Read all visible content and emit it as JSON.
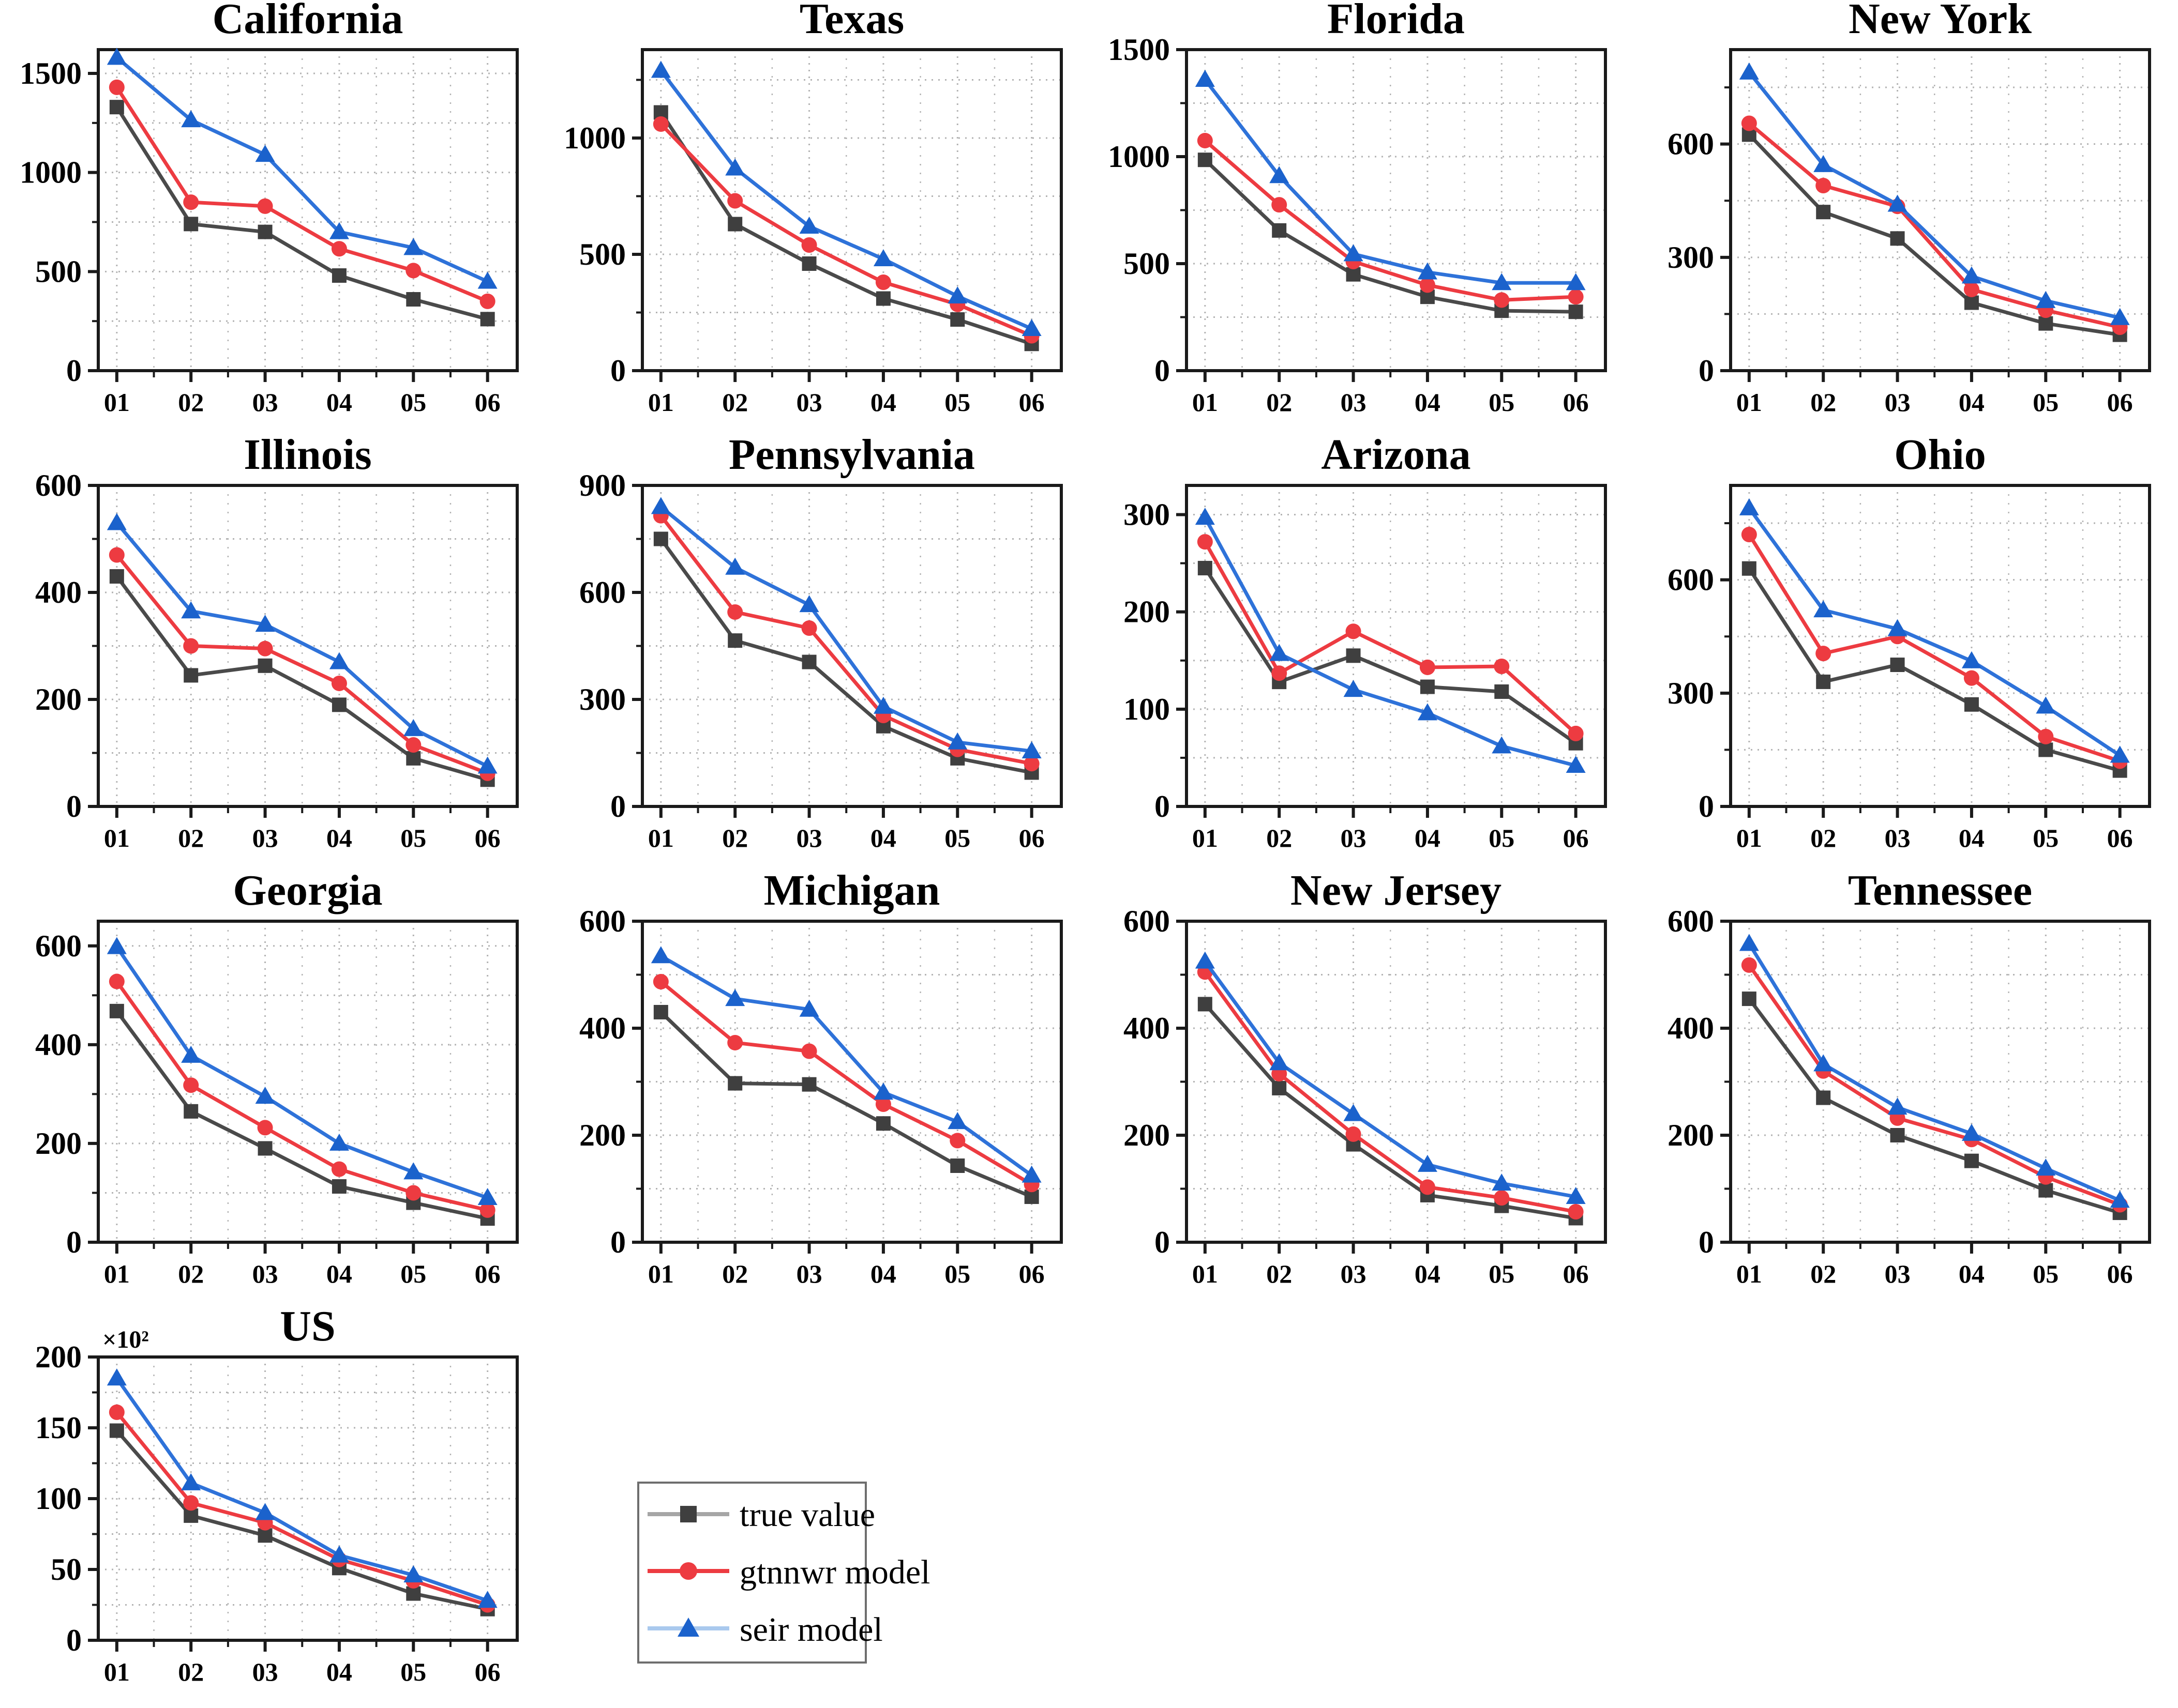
{
  "figure": {
    "background": "#ffffff",
    "text_color": "#000000",
    "grid_color": "#b3b3b3",
    "frame_color": "#1a1a1a"
  },
  "legend": {
    "items": [
      {
        "label": "true value",
        "marker": "square",
        "marker_color": "#3f3f3f",
        "line_color": "#a6a6a6"
      },
      {
        "label": "gtnnwr model",
        "marker": "circle",
        "marker_color": "#ed3b41",
        "line_color": "#ed3b41"
      },
      {
        "label": "seir model",
        "marker": "triangle",
        "marker_color": "#1b62cc",
        "line_color": "#a9c9ee"
      }
    ]
  },
  "series_style": [
    {
      "name": "true value",
      "marker": "square",
      "marker_color": "#3f3f3f",
      "line_color": "#4a4a4a"
    },
    {
      "name": "gtnnwr model",
      "marker": "circle",
      "marker_color": "#ed3b41",
      "line_color": "#ed3b41"
    },
    {
      "name": "seir model",
      "marker": "triangle",
      "marker_color": "#1b62cc",
      "line_color": "#2e72d9"
    }
  ],
  "chart_data": [
    {
      "type": "line",
      "title": "California",
      "x": [
        "01",
        "02",
        "03",
        "04",
        "05",
        "06"
      ],
      "ylim": [
        0,
        1620
      ],
      "yticks": [
        0,
        500,
        1000,
        1500
      ],
      "minor_step": 250,
      "series": [
        {
          "name": "true value",
          "values": [
            1330,
            740,
            700,
            480,
            360,
            260
          ]
        },
        {
          "name": "gtnnwr model",
          "values": [
            1430,
            850,
            830,
            615,
            505,
            350
          ]
        },
        {
          "name": "seir model",
          "values": [
            1580,
            1265,
            1090,
            700,
            620,
            450
          ]
        }
      ]
    },
    {
      "type": "line",
      "title": "Texas",
      "x": [
        "01",
        "02",
        "03",
        "04",
        "05",
        "06"
      ],
      "ylim": [
        0,
        1380
      ],
      "yticks": [
        0,
        500,
        1000
      ],
      "minor_step": 250,
      "series": [
        {
          "name": "true value",
          "values": [
            1110,
            630,
            460,
            310,
            220,
            115
          ]
        },
        {
          "name": "gtnnwr model",
          "values": [
            1060,
            730,
            540,
            380,
            285,
            150
          ]
        },
        {
          "name": "seir model",
          "values": [
            1290,
            870,
            620,
            480,
            320,
            180
          ]
        }
      ]
    },
    {
      "type": "line",
      "title": "Florida",
      "x": [
        "01",
        "02",
        "03",
        "04",
        "05",
        "06"
      ],
      "ylim": [
        0,
        1500
      ],
      "yticks": [
        0,
        500,
        1000,
        1500
      ],
      "minor_step": 250,
      "series": [
        {
          "name": "true value",
          "values": [
            985,
            655,
            450,
            345,
            280,
            275
          ]
        },
        {
          "name": "gtnnwr model",
          "values": [
            1075,
            775,
            510,
            400,
            330,
            345
          ]
        },
        {
          "name": "seir model",
          "values": [
            1360,
            910,
            545,
            460,
            410,
            410
          ]
        }
      ]
    },
    {
      "type": "line",
      "title": "New York",
      "x": [
        "01",
        "02",
        "03",
        "04",
        "05",
        "06"
      ],
      "ylim": [
        0,
        850
      ],
      "yticks": [
        0,
        300,
        600
      ],
      "minor_step": 150,
      "series": [
        {
          "name": "true value",
          "values": [
            625,
            420,
            350,
            180,
            125,
            95
          ]
        },
        {
          "name": "gtnnwr model",
          "values": [
            655,
            490,
            435,
            215,
            160,
            115
          ]
        },
        {
          "name": "seir model",
          "values": [
            790,
            545,
            440,
            250,
            185,
            140
          ]
        }
      ]
    },
    {
      "type": "line",
      "title": "Illinois",
      "x": [
        "01",
        "02",
        "03",
        "04",
        "05",
        "06"
      ],
      "ylim": [
        0,
        600
      ],
      "yticks": [
        0,
        200,
        400,
        600
      ],
      "minor_step": 100,
      "series": [
        {
          "name": "true value",
          "values": [
            430,
            245,
            263,
            190,
            90,
            50
          ]
        },
        {
          "name": "gtnnwr model",
          "values": [
            470,
            300,
            295,
            230,
            115,
            62
          ]
        },
        {
          "name": "seir model",
          "values": [
            530,
            365,
            340,
            270,
            145,
            75
          ]
        }
      ]
    },
    {
      "type": "line",
      "title": "Pennsylvania",
      "x": [
        "01",
        "02",
        "03",
        "04",
        "05",
        "06"
      ],
      "ylim": [
        0,
        900
      ],
      "yticks": [
        0,
        300,
        600,
        900
      ],
      "minor_step": 150,
      "series": [
        {
          "name": "true value",
          "values": [
            750,
            465,
            405,
            225,
            135,
            95
          ]
        },
        {
          "name": "gtnnwr model",
          "values": [
            815,
            545,
            500,
            255,
            160,
            120
          ]
        },
        {
          "name": "seir model",
          "values": [
            840,
            670,
            565,
            280,
            180,
            155
          ]
        }
      ]
    },
    {
      "type": "line",
      "title": "Arizona",
      "x": [
        "01",
        "02",
        "03",
        "04",
        "05",
        "06"
      ],
      "ylim": [
        0,
        330
      ],
      "yticks": [
        0,
        100,
        200,
        300
      ],
      "minor_step": 50,
      "series": [
        {
          "name": "true value",
          "values": [
            245,
            128,
            155,
            123,
            118,
            65
          ]
        },
        {
          "name": "gtnnwr model",
          "values": [
            272,
            137,
            180,
            143,
            144,
            75
          ]
        },
        {
          "name": "seir model",
          "values": [
            297,
            157,
            120,
            96,
            62,
            42
          ]
        }
      ]
    },
    {
      "type": "line",
      "title": "Ohio",
      "x": [
        "01",
        "02",
        "03",
        "04",
        "05",
        "06"
      ],
      "ylim": [
        0,
        850
      ],
      "yticks": [
        0,
        300,
        600
      ],
      "minor_step": 150,
      "series": [
        {
          "name": "true value",
          "values": [
            630,
            330,
            375,
            270,
            150,
            95
          ]
        },
        {
          "name": "gtnnwr model",
          "values": [
            720,
            405,
            450,
            340,
            185,
            120
          ]
        },
        {
          "name": "seir model",
          "values": [
            790,
            520,
            470,
            385,
            265,
            135
          ]
        }
      ]
    },
    {
      "type": "line",
      "title": "Georgia",
      "x": [
        "01",
        "02",
        "03",
        "04",
        "05",
        "06"
      ],
      "ylim": [
        0,
        650
      ],
      "yticks": [
        0,
        200,
        400,
        600
      ],
      "minor_step": 100,
      "series": [
        {
          "name": "true value",
          "values": [
            468,
            265,
            190,
            113,
            80,
            48
          ]
        },
        {
          "name": "gtnnwr model",
          "values": [
            528,
            318,
            232,
            148,
            100,
            65
          ]
        },
        {
          "name": "seir model",
          "values": [
            598,
            378,
            295,
            200,
            142,
            90
          ]
        }
      ]
    },
    {
      "type": "line",
      "title": "Michigan",
      "x": [
        "01",
        "02",
        "03",
        "04",
        "05",
        "06"
      ],
      "ylim": [
        0,
        600
      ],
      "yticks": [
        0,
        200,
        400,
        600
      ],
      "minor_step": 100,
      "series": [
        {
          "name": "true value",
          "values": [
            430,
            297,
            295,
            222,
            143,
            85
          ]
        },
        {
          "name": "gtnnwr model",
          "values": [
            487,
            373,
            357,
            258,
            190,
            108
          ]
        },
        {
          "name": "seir model",
          "values": [
            535,
            455,
            435,
            280,
            225,
            125
          ]
        }
      ]
    },
    {
      "type": "line",
      "title": "New Jersey",
      "x": [
        "01",
        "02",
        "03",
        "04",
        "05",
        "06"
      ],
      "ylim": [
        0,
        600
      ],
      "yticks": [
        0,
        200,
        400,
        600
      ],
      "minor_step": 100,
      "series": [
        {
          "name": "true value",
          "values": [
            445,
            288,
            183,
            88,
            68,
            45
          ]
        },
        {
          "name": "gtnnwr model",
          "values": [
            505,
            315,
            202,
            103,
            83,
            57
          ]
        },
        {
          "name": "seir model",
          "values": [
            525,
            335,
            240,
            145,
            110,
            85
          ]
        }
      ]
    },
    {
      "type": "line",
      "title": "Tennessee",
      "x": [
        "01",
        "02",
        "03",
        "04",
        "05",
        "06"
      ],
      "ylim": [
        0,
        600
      ],
      "yticks": [
        0,
        200,
        400,
        600
      ],
      "minor_step": 100,
      "series": [
        {
          "name": "true value",
          "values": [
            455,
            270,
            200,
            152,
            97,
            55
          ]
        },
        {
          "name": "gtnnwr model",
          "values": [
            518,
            320,
            232,
            192,
            122,
            70
          ]
        },
        {
          "name": "seir model",
          "values": [
            558,
            333,
            252,
            203,
            138,
            78
          ]
        }
      ]
    },
    {
      "type": "line",
      "title": "US",
      "y_multiplier": "×10²",
      "x": [
        "01",
        "02",
        "03",
        "04",
        "05",
        "06"
      ],
      "ylim": [
        0,
        200
      ],
      "yticks": [
        0,
        50,
        100,
        150,
        200
      ],
      "minor_step": 25,
      "series": [
        {
          "name": "true value",
          "values": [
            148,
            88,
            74,
            51,
            33,
            22
          ]
        },
        {
          "name": "gtnnwr model",
          "values": [
            161,
            97,
            83,
            57,
            42,
            25
          ]
        },
        {
          "name": "seir model",
          "values": [
            185,
            111,
            90,
            60,
            46,
            28
          ]
        }
      ]
    }
  ]
}
